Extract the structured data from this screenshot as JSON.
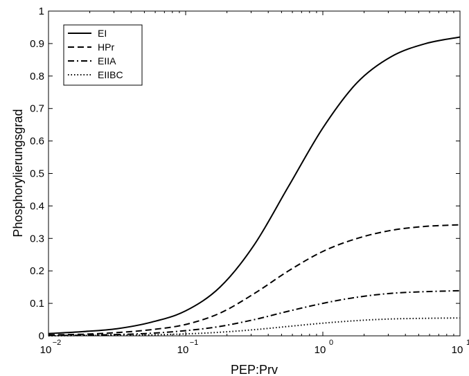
{
  "chart_data": {
    "type": "line",
    "title": "",
    "xlabel": "PEP:Prv",
    "ylabel": "Phosphorylierungsgrad",
    "xscale": "log",
    "xlim": [
      0.01,
      10
    ],
    "ylim": [
      0,
      1
    ],
    "x_ticks": [
      {
        "value": 0.01,
        "base": "10",
        "exp": "−2"
      },
      {
        "value": 0.1,
        "base": "10",
        "exp": "−1"
      },
      {
        "value": 1,
        "base": "10",
        "exp": "0"
      },
      {
        "value": 10,
        "base": "10",
        "exp": "1"
      }
    ],
    "y_ticks": [
      "0",
      "0.1",
      "0.2",
      "0.3",
      "0.4",
      "0.5",
      "0.6",
      "0.7",
      "0.8",
      "0.9",
      "1"
    ],
    "grid": false,
    "legend_position": "top-left",
    "x": [
      0.01,
      0.0178,
      0.0316,
      0.0562,
      0.1,
      0.178,
      0.316,
      0.562,
      1.0,
      1.78,
      3.16,
      5.62,
      10
    ],
    "series": [
      {
        "name": "EI",
        "style": "solid",
        "values": [
          0.007,
          0.013,
          0.022,
          0.042,
          0.077,
          0.15,
          0.28,
          0.46,
          0.64,
          0.78,
          0.86,
          0.9,
          0.92
        ]
      },
      {
        "name": "HPr",
        "style": "dashed",
        "values": [
          0.003,
          0.005,
          0.01,
          0.019,
          0.035,
          0.07,
          0.13,
          0.2,
          0.26,
          0.3,
          0.325,
          0.337,
          0.342
        ]
      },
      {
        "name": "EIIA",
        "style": "dashdot",
        "values": [
          0.001,
          0.002,
          0.004,
          0.008,
          0.016,
          0.029,
          0.05,
          0.076,
          0.1,
          0.119,
          0.131,
          0.136,
          0.139
        ]
      },
      {
        "name": "EIIBC",
        "style": "dotted",
        "values": [
          0.0,
          0.001,
          0.002,
          0.003,
          0.006,
          0.011,
          0.019,
          0.029,
          0.039,
          0.047,
          0.052,
          0.054,
          0.055
        ]
      }
    ]
  }
}
